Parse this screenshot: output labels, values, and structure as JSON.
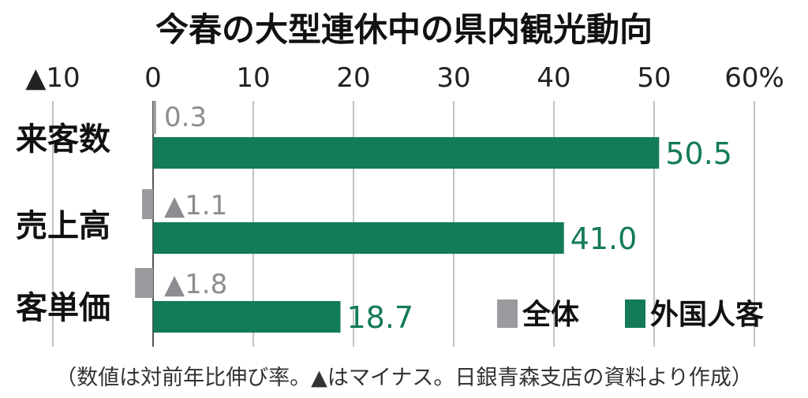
{
  "chart_data": {
    "type": "bar",
    "orientation": "horizontal",
    "title": "今春の大型連休中の県内観光動向",
    "categories": [
      "来客数",
      "売上高",
      "客単価"
    ],
    "series": [
      {
        "name": "全体",
        "color": "#9a9b9e",
        "values": [
          0.3,
          -1.1,
          -1.8
        ],
        "labels": [
          "0.3",
          "▲1.1",
          "▲1.8"
        ]
      },
      {
        "name": "外国人客",
        "color": "#137a5a",
        "values": [
          50.5,
          41.0,
          18.7
        ],
        "labels": [
          "50.5",
          "41.0",
          "18.7"
        ]
      }
    ],
    "xlim": [
      -10,
      60
    ],
    "ticks": [
      -10,
      0,
      10,
      20,
      30,
      40,
      50,
      60
    ],
    "tick_labels": [
      "▲10",
      "0",
      "10",
      "20",
      "30",
      "40",
      "50",
      "60%"
    ],
    "grid": true,
    "legend_position": "bottom-right",
    "note": "（数値は対前年比伸び率。▲はマイナス。日銀青森支店の資料より作成）"
  }
}
